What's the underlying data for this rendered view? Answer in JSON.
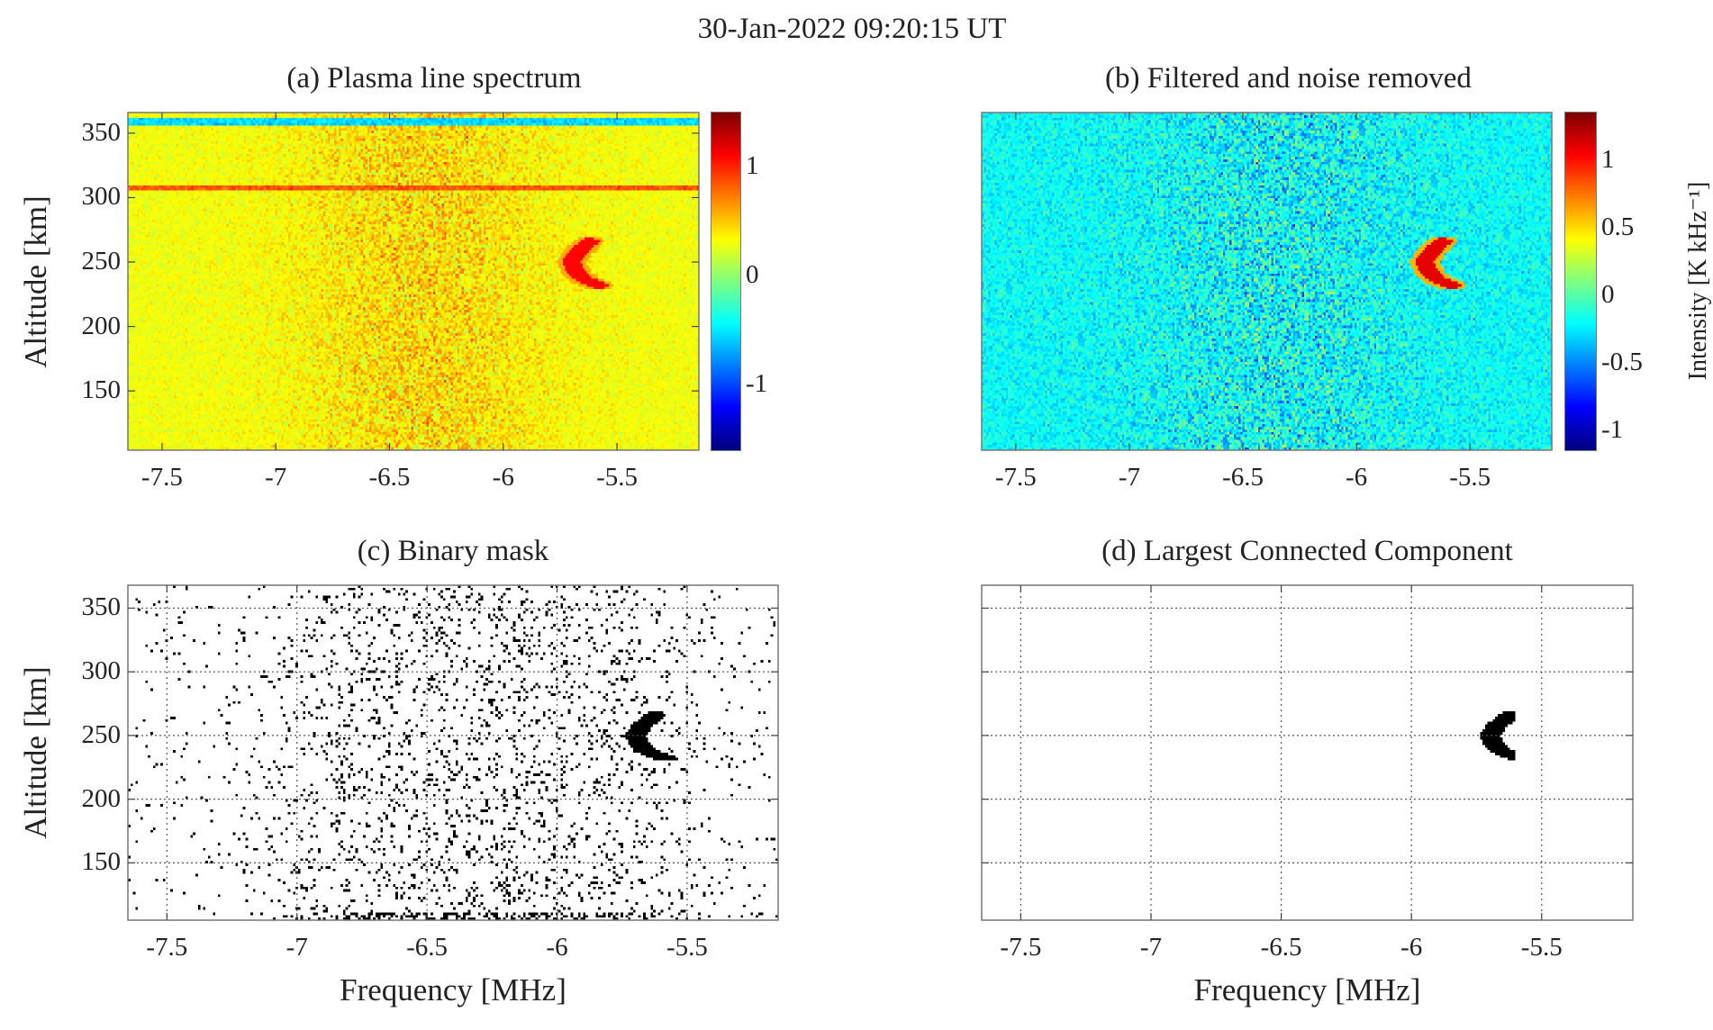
{
  "figure": {
    "title": "30-Jan-2022 09:20:15 UT"
  },
  "chart_data": [
    {
      "id": "a",
      "type": "heatmap",
      "title": "(a) Plasma line spectrum",
      "xlabel": "",
      "ylabel": "Altitude [km]",
      "xlim": [
        -7.65,
        -5.14
      ],
      "ylim": [
        104,
        366
      ],
      "xticks": [
        -7.5,
        -7,
        -6.5,
        -6,
        -5.5
      ],
      "xticklabels": [
        "-7.5",
        "-7",
        "-6.5",
        "-6",
        "-5.5"
      ],
      "yticks": [
        150,
        200,
        250,
        300,
        350
      ],
      "yticklabels": [
        "150",
        "200",
        "250",
        "300",
        "350"
      ],
      "colorbar": {
        "clim": [
          -1.6,
          1.5
        ],
        "ticks": [
          -1,
          0,
          1
        ],
        "ticklabels": [
          "-1",
          "0",
          "1"
        ],
        "label": ""
      },
      "colormap": "jet",
      "grid": false
    },
    {
      "id": "b",
      "type": "heatmap",
      "title": "(b) Filtered and noise removed",
      "xlabel": "",
      "ylabel": "",
      "xlim": [
        -7.65,
        -5.14
      ],
      "ylim": [
        104,
        366
      ],
      "xticks": [
        -7.5,
        -7,
        -6.5,
        -6,
        -5.5
      ],
      "xticklabels": [
        "-7.5",
        "-7",
        "-6.5",
        "-6",
        "-5.5"
      ],
      "yticks": [],
      "yticklabels": [],
      "colorbar": {
        "clim": [
          -1.15,
          1.35
        ],
        "ticks": [
          -1,
          -0.5,
          0,
          0.5,
          1
        ],
        "ticklabels": [
          "-1",
          "-0.5",
          "0",
          "0.5",
          "1"
        ],
        "label": "Intensity [K kHz⁻¹]"
      },
      "colormap": "jet",
      "grid": false
    },
    {
      "id": "c",
      "type": "heatmap",
      "title": "(c) Binary mask",
      "xlabel": "Frequency [MHz]",
      "ylabel": "Altitude [km]",
      "xlim": [
        -7.65,
        -5.15
      ],
      "ylim": [
        105,
        368
      ],
      "xticks": [
        -7.5,
        -7,
        -6.5,
        -6,
        -5.5
      ],
      "xticklabels": [
        "-7.5",
        "-7",
        "-6.5",
        "-6",
        "-5.5"
      ],
      "yticks": [
        150,
        200,
        250,
        300,
        350
      ],
      "yticklabels": [
        "150",
        "200",
        "250",
        "300",
        "350"
      ],
      "colormap": "binary",
      "grid": true
    },
    {
      "id": "d",
      "type": "heatmap",
      "title": "(d) Largest Connected Component",
      "xlabel": "Frequency [MHz]",
      "ylabel": "",
      "xlim": [
        -7.65,
        -5.15
      ],
      "ylim": [
        105,
        368
      ],
      "xticks": [
        -7.5,
        -7,
        -6.5,
        -6,
        -5.5
      ],
      "xticklabels": [
        "-7.5",
        "-7",
        "-6.5",
        "-6",
        "-5.5"
      ],
      "yticks": [
        150,
        200,
        250,
        300,
        350
      ],
      "yticklabels": [],
      "colormap": "binary",
      "grid": true
    }
  ],
  "feature": {
    "name": "plasma line arc",
    "points": [
      [
        -5.62,
        266
      ],
      [
        -5.67,
        258
      ],
      [
        -5.7,
        250
      ],
      [
        -5.68,
        242
      ],
      [
        -5.64,
        236
      ],
      [
        -5.58,
        232
      ]
    ]
  }
}
